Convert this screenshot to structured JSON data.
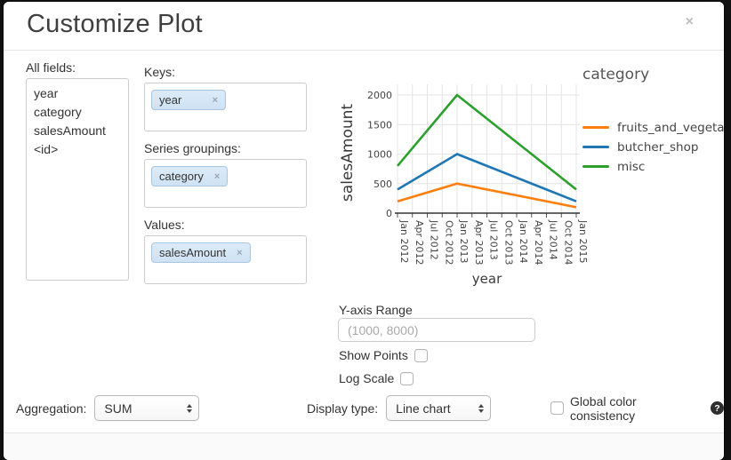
{
  "dialog": {
    "title": "Customize Plot",
    "close_glyph": "×"
  },
  "fields_panel": {
    "label": "All fields:",
    "items": [
      "year",
      "category",
      "salesAmount",
      "<id>"
    ]
  },
  "wells": {
    "keys": {
      "label": "Keys:",
      "tags": [
        "year"
      ]
    },
    "series_groupings": {
      "label": "Series groupings:",
      "tags": [
        "category"
      ]
    },
    "values": {
      "label": "Values:",
      "tags": [
        "salesAmount"
      ]
    }
  },
  "chart_data": {
    "type": "line",
    "xlabel": "year",
    "ylabel": "salesAmount",
    "legend_title": "category",
    "legend_position": "right",
    "grid": true,
    "ylim": [
      0,
      2000
    ],
    "y_ticks": [
      0,
      500,
      1000,
      1500,
      2000
    ],
    "x_ticks": [
      "Jan 2012",
      "Apr 2012",
      "Jul 2012",
      "Oct 2012",
      "Jan 2013",
      "Apr 2013",
      "Jul 2013",
      "Oct 2013",
      "Jan 2014",
      "Apr 2014",
      "Jul 2014",
      "Oct 2014",
      "Jan 2015"
    ],
    "series": [
      {
        "name": "fruits_and_vegetables",
        "color": "#ff7f0e",
        "x": [
          "Jan 2012",
          "Jan 2013",
          "Jan 2015"
        ],
        "values": [
          200,
          500,
          100
        ]
      },
      {
        "name": "butcher_shop",
        "color": "#1f77b4",
        "x": [
          "Jan 2012",
          "Jan 2013",
          "Jan 2015"
        ],
        "values": [
          400,
          1000,
          200
        ]
      },
      {
        "name": "misc",
        "color": "#2ca02c",
        "x": [
          "Jan 2012",
          "Jan 2013",
          "Jan 2015"
        ],
        "values": [
          800,
          2000,
          400
        ]
      }
    ]
  },
  "options": {
    "y_axis_range_label": "Y-axis Range",
    "y_axis_range_value": "",
    "y_axis_range_placeholder": "(1000, 8000)",
    "show_points_label": "Show Points",
    "show_points_checked": false,
    "log_scale_label": "Log Scale",
    "log_scale_checked": false
  },
  "footer": {
    "aggregation_label": "Aggregation:",
    "aggregation_value": "SUM",
    "display_type_label": "Display type:",
    "display_type_value": "Line chart",
    "global_color_label": "Global color consistency",
    "global_color_checked": false,
    "help_glyph": "?"
  }
}
